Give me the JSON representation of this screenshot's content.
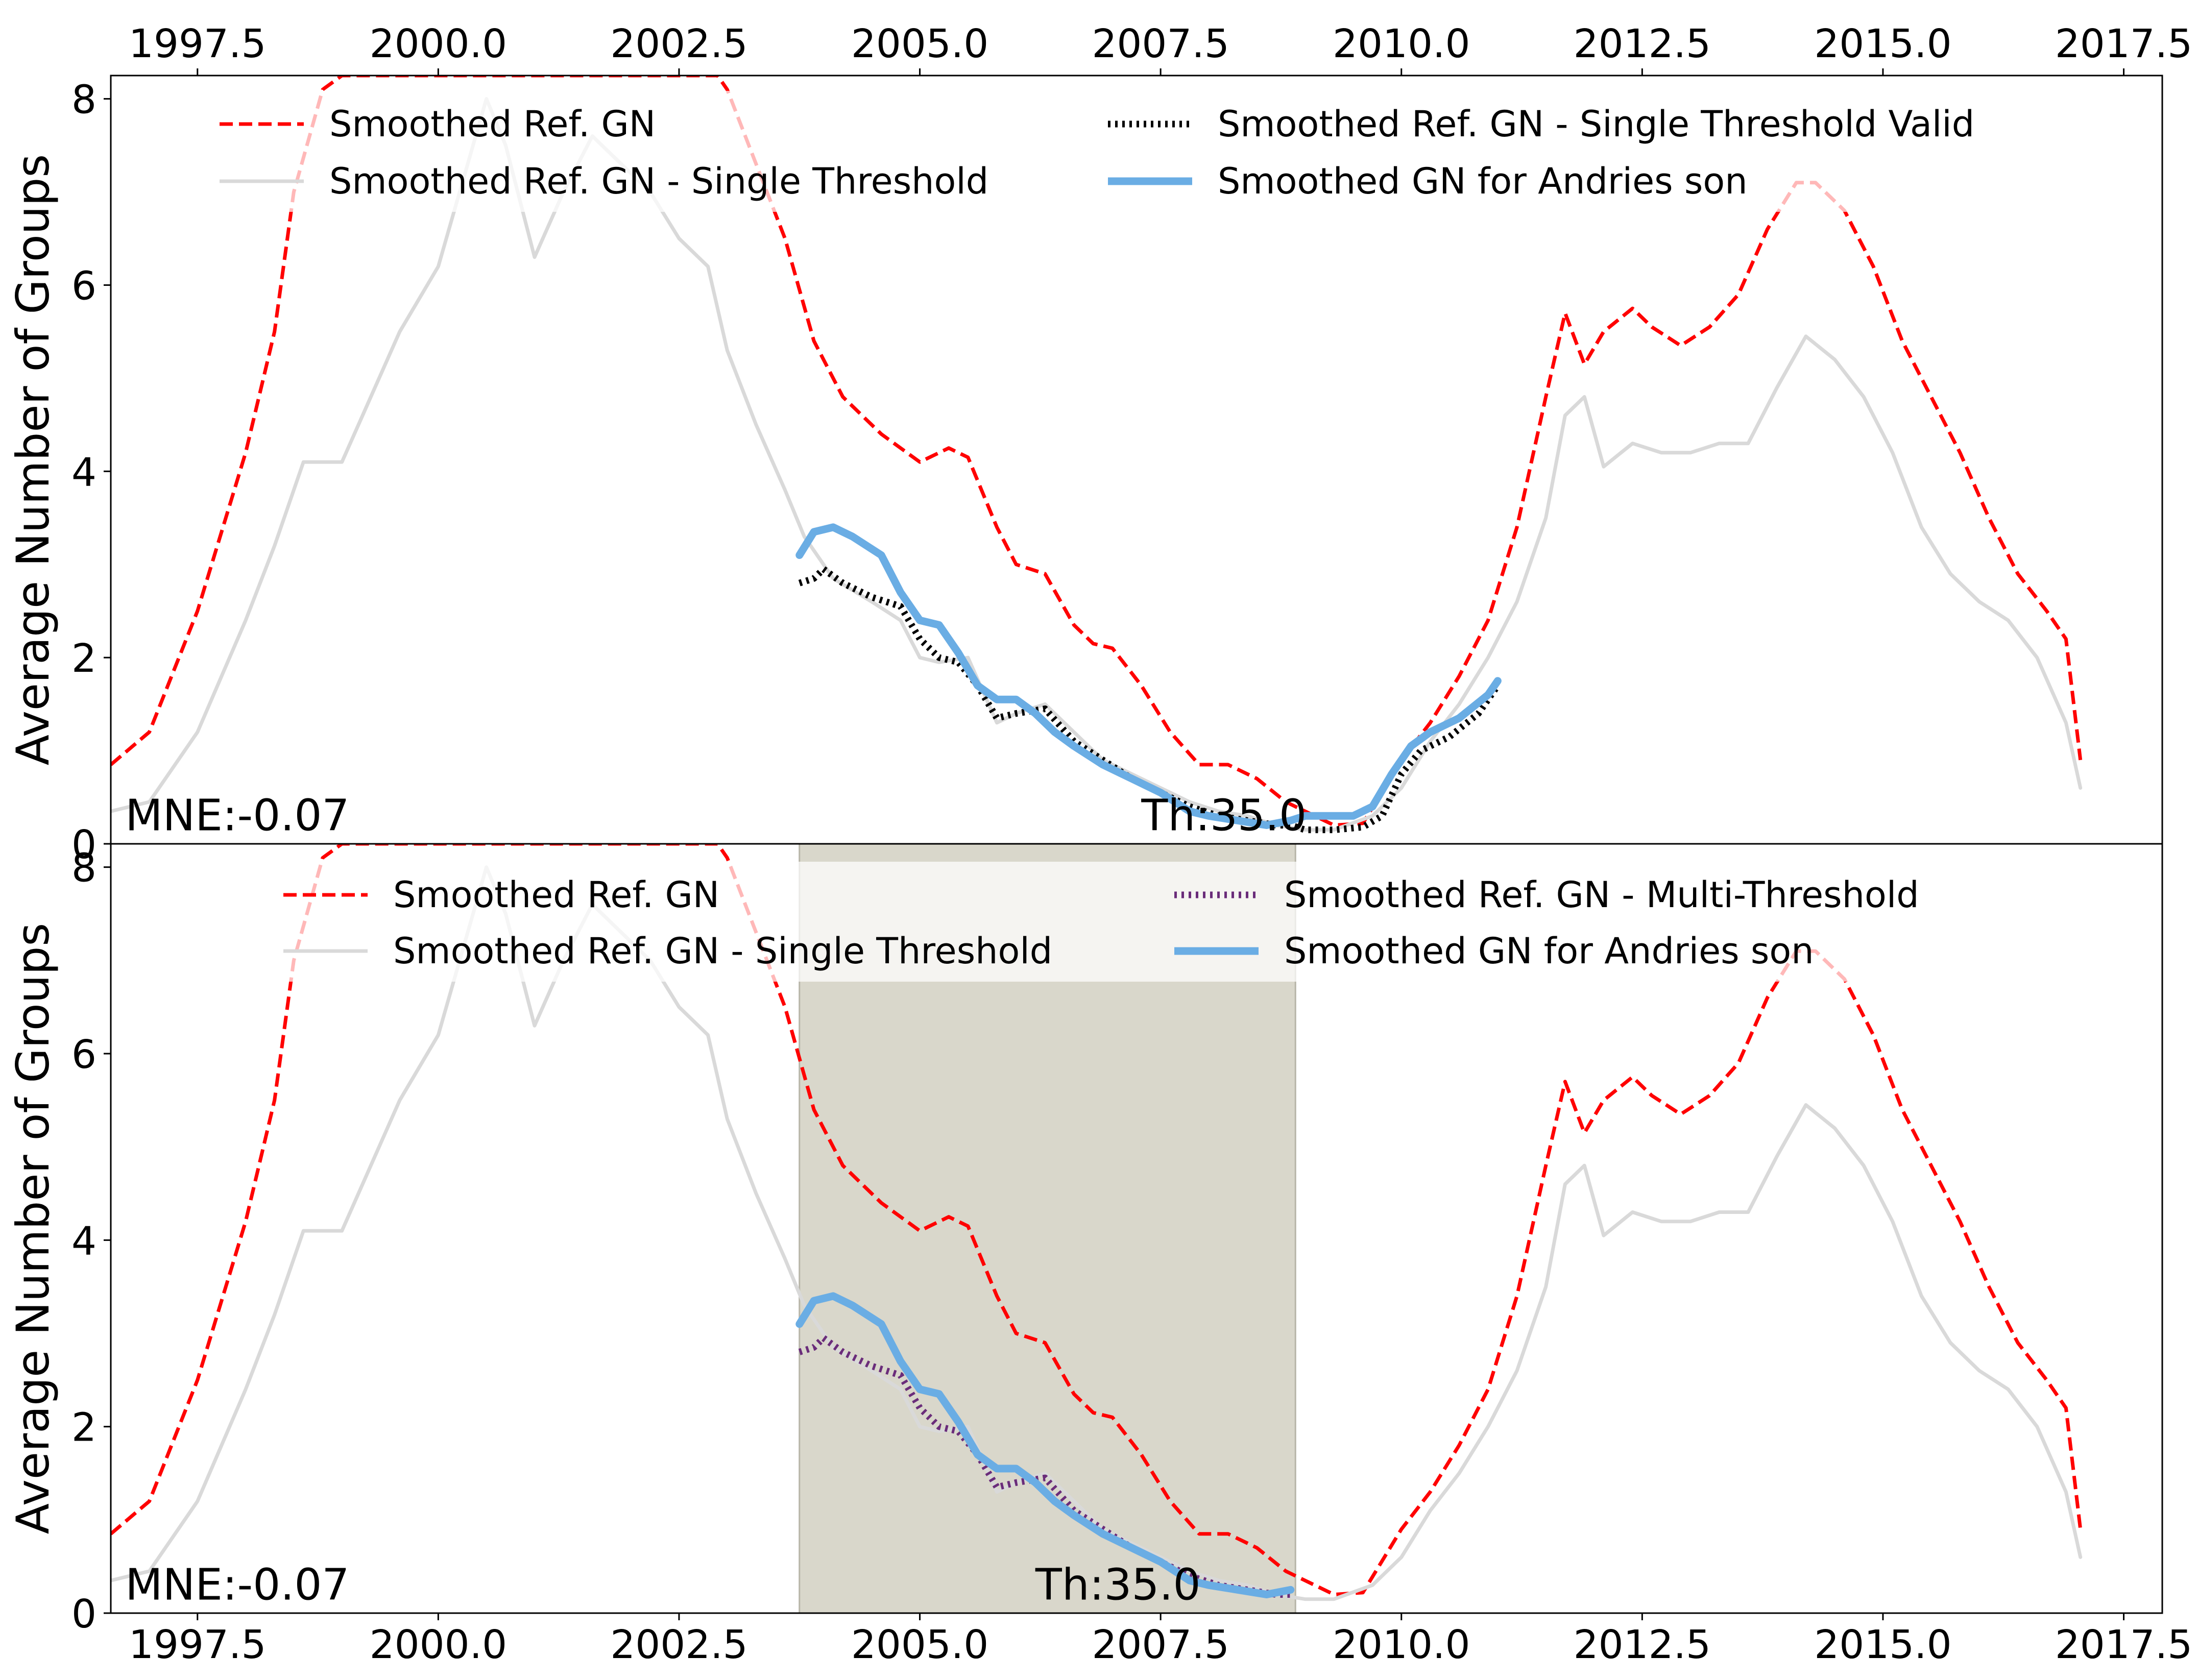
{
  "chart_data": [
    {
      "type": "line",
      "panel": "top",
      "title": "",
      "xlabel": "",
      "ylabel": "Average Number of Groups",
      "xlim": [
        1996.6,
        2017.9
      ],
      "ylim": [
        0,
        8.25
      ],
      "xticks": [
        1997.5,
        2000.0,
        2002.5,
        2005.0,
        2007.5,
        2010.0,
        2012.5,
        2015.0,
        2017.5
      ],
      "xtick_labels": [
        "1997.5",
        "2000.0",
        "2002.5",
        "2005.0",
        "2007.5",
        "2010.0",
        "2012.5",
        "2015.0",
        "2017.5"
      ],
      "yticks": [
        0,
        2,
        4,
        6,
        8
      ],
      "ytick_labels": [
        "0",
        "2",
        "4",
        "6",
        "8"
      ],
      "x_axis_position": "top",
      "grid": false,
      "legend_position": "top",
      "legend": [
        {
          "label": "Smoothed Ref. GN",
          "color": "#ff0000",
          "style": "dashed"
        },
        {
          "label": "Smoothed Ref. GN - Single Threshold",
          "color": "#d9d9d9",
          "style": "solid"
        },
        {
          "label": "Smoothed Ref. GN - Single Threshold Valid",
          "color": "#000000",
          "style": "dotted"
        },
        {
          "label": "Smoothed GN for Andries son",
          "color": "#6aade4",
          "style": "solid"
        }
      ],
      "annotations": [
        {
          "text": "MNE:-0.07",
          "x": 1996.75,
          "y": 0.2
        },
        {
          "text": "Th:35.0",
          "x": 2007.3,
          "y": 0.2
        }
      ],
      "highlight_interval": null,
      "series": [
        {
          "name": "Smoothed Ref. GN",
          "color": "#ff0000",
          "style": "dashed",
          "x": [
            1996.6,
            1997.0,
            1997.5,
            1998.0,
            1998.3,
            1998.5,
            1998.8,
            1999.0,
            1999.3,
            2002.9,
            2003.0,
            2003.3,
            2003.6,
            2003.9,
            2004.2,
            2004.6,
            2005.0,
            2005.3,
            2005.5,
            2005.8,
            2006.0,
            2006.3,
            2006.6,
            2006.8,
            2007.0,
            2007.3,
            2007.6,
            2007.9,
            2008.2,
            2008.5,
            2008.8,
            2009.1,
            2009.3,
            2009.6,
            2010.0,
            2010.3,
            2010.6,
            2010.9,
            2011.2,
            2011.5,
            2011.7,
            2011.9,
            2012.1,
            2012.4,
            2012.6,
            2012.9,
            2013.2,
            2013.5,
            2013.8,
            2014.1,
            2014.3,
            2014.6,
            2014.9,
            2015.2,
            2015.5,
            2015.8,
            2016.1,
            2016.4,
            2016.7,
            2016.9,
            2017.05
          ],
          "y": [
            0.85,
            1.2,
            2.5,
            4.2,
            5.5,
            7.0,
            8.1,
            8.25,
            8.25,
            8.25,
            8.1,
            7.3,
            6.5,
            5.4,
            4.8,
            4.4,
            4.1,
            4.25,
            4.15,
            3.4,
            3.0,
            2.9,
            2.35,
            2.15,
            2.1,
            1.7,
            1.2,
            0.85,
            0.85,
            0.7,
            0.45,
            0.3,
            0.2,
            0.22,
            0.9,
            1.3,
            1.8,
            2.4,
            3.4,
            4.8,
            5.7,
            5.15,
            5.5,
            5.75,
            5.55,
            5.35,
            5.55,
            5.9,
            6.6,
            7.1,
            7.1,
            6.8,
            6.2,
            5.4,
            4.8,
            4.2,
            3.5,
            2.9,
            2.5,
            2.2,
            0.9
          ]
        },
        {
          "name": "Smoothed Ref. GN - Single Threshold",
          "color": "#d9d9d9",
          "style": "solid",
          "x": [
            1996.6,
            1997.0,
            1997.5,
            1998.0,
            1998.3,
            1998.6,
            1999.0,
            1999.3,
            1999.6,
            2000.0,
            2000.5,
            2000.7,
            2001.0,
            2001.3,
            2001.6,
            2001.9,
            2002.2,
            2002.5,
            2002.8,
            2003.0,
            2003.3,
            2003.6,
            2003.8,
            2004.1,
            2004.5,
            2004.8,
            2005.0,
            2005.2,
            2005.5,
            2005.8,
            2006.0,
            2006.3,
            2006.6,
            2006.9,
            2007.2,
            2007.5,
            2007.8,
            2008.1,
            2008.4,
            2008.7,
            2009.0,
            2009.3,
            2009.7,
            2010.0,
            2010.3,
            2010.6,
            2010.9,
            2011.2,
            2011.5,
            2011.7,
            2011.9,
            2012.1,
            2012.4,
            2012.7,
            2013.0,
            2013.3,
            2013.6,
            2013.9,
            2014.2,
            2014.5,
            2014.8,
            2015.1,
            2015.4,
            2015.7,
            2016.0,
            2016.3,
            2016.6,
            2016.9,
            2017.05
          ],
          "y": [
            0.35,
            0.45,
            1.2,
            2.4,
            3.2,
            4.1,
            4.1,
            4.8,
            5.5,
            6.2,
            8.0,
            7.5,
            6.3,
            7.0,
            7.6,
            7.3,
            7.0,
            6.5,
            6.2,
            5.3,
            4.5,
            3.8,
            3.3,
            2.85,
            2.6,
            2.4,
            2.0,
            1.95,
            2.0,
            1.3,
            1.4,
            1.5,
            1.2,
            0.9,
            0.75,
            0.6,
            0.45,
            0.35,
            0.3,
            0.2,
            0.15,
            0.15,
            0.3,
            0.6,
            1.1,
            1.5,
            2.0,
            2.6,
            3.5,
            4.6,
            4.8,
            4.05,
            4.3,
            4.2,
            4.2,
            4.3,
            4.3,
            4.9,
            5.45,
            5.2,
            4.8,
            4.2,
            3.4,
            2.9,
            2.6,
            2.4,
            2.0,
            1.3,
            0.6
          ]
        },
        {
          "name": "Smoothed Ref. GN - Single Threshold Valid",
          "color": "#000000",
          "style": "dotted",
          "x": [
            2003.75,
            2003.9,
            2004.0,
            2004.2,
            2004.5,
            2004.8,
            2005.0,
            2005.2,
            2005.4,
            2005.6,
            2005.8,
            2006.0,
            2006.3,
            2006.6,
            2006.9,
            2007.2,
            2007.5,
            2007.8,
            2008.1,
            2008.4,
            2008.7,
            2008.85,
            2009.0,
            2009.3,
            2009.6,
            2009.8,
            2010.0,
            2010.2,
            2010.5,
            2010.8,
            2011.0
          ],
          "y": [
            2.8,
            2.85,
            2.95,
            2.8,
            2.65,
            2.55,
            2.2,
            2.0,
            1.95,
            1.7,
            1.35,
            1.4,
            1.45,
            1.1,
            0.9,
            0.7,
            0.55,
            0.4,
            0.3,
            0.25,
            0.2,
            0.2,
            0.15,
            0.15,
            0.18,
            0.3,
            0.75,
            1.0,
            1.15,
            1.4,
            1.7
          ]
        },
        {
          "name": "Smoothed GN for Andries son",
          "color": "#6aade4",
          "style": "solid",
          "x": [
            2003.75,
            2003.9,
            2004.1,
            2004.3,
            2004.6,
            2004.8,
            2005.0,
            2005.2,
            2005.4,
            2005.6,
            2005.8,
            2006.0,
            2006.2,
            2006.4,
            2006.6,
            2006.9,
            2007.2,
            2007.5,
            2007.8,
            2008.0,
            2008.3,
            2008.6,
            2008.85,
            2009.0,
            2009.2,
            2009.5,
            2009.7,
            2009.9,
            2010.1,
            2010.3,
            2010.6,
            2010.9,
            2011.0
          ],
          "y": [
            3.1,
            3.35,
            3.4,
            3.3,
            3.1,
            2.7,
            2.4,
            2.35,
            2.05,
            1.7,
            1.55,
            1.55,
            1.4,
            1.2,
            1.05,
            0.85,
            0.7,
            0.55,
            0.35,
            0.3,
            0.25,
            0.2,
            0.25,
            0.3,
            0.3,
            0.3,
            0.4,
            0.75,
            1.05,
            1.2,
            1.35,
            1.6,
            1.75
          ]
        }
      ]
    },
    {
      "type": "line",
      "panel": "bottom",
      "title": "",
      "xlabel": "",
      "ylabel": "Average Number of Groups",
      "xlim": [
        1996.6,
        2017.9
      ],
      "ylim": [
        0,
        8.25
      ],
      "xticks": [
        1997.5,
        2000.0,
        2002.5,
        2005.0,
        2007.5,
        2010.0,
        2012.5,
        2015.0,
        2017.5
      ],
      "xtick_labels": [
        "1997.5",
        "2000.0",
        "2002.5",
        "2005.0",
        "2007.5",
        "2010.0",
        "2012.5",
        "2015.0",
        "2017.5"
      ],
      "yticks": [
        0,
        2,
        4,
        6,
        8
      ],
      "ytick_labels": [
        "0",
        "2",
        "4",
        "6",
        "8"
      ],
      "x_axis_position": "bottom",
      "grid": false,
      "legend_position": "top",
      "legend": [
        {
          "label": "Smoothed Ref. GN",
          "color": "#ff0000",
          "style": "dashed"
        },
        {
          "label": "Smoothed Ref. GN - Single Threshold",
          "color": "#d9d9d9",
          "style": "solid"
        },
        {
          "label": "Smoothed Ref. GN - Multi-Threshold",
          "color": "#6a2c7a",
          "style": "dotted"
        },
        {
          "label": "Smoothed GN for Andries son",
          "color": "#6aade4",
          "style": "solid"
        }
      ],
      "annotations": [
        {
          "text": "MNE:-0.07",
          "x": 1996.75,
          "y": 0.2
        },
        {
          "text": "Th:35.0",
          "x": 2006.2,
          "y": 0.2
        }
      ],
      "highlight_interval": {
        "x": [
          2003.75,
          2008.9
        ],
        "color": "#d9d7cb"
      },
      "series": [
        {
          "name": "Smoothed Ref. GN",
          "color": "#ff0000",
          "style": "dashed",
          "x": [
            1996.6,
            1997.0,
            1997.5,
            1998.0,
            1998.3,
            1998.5,
            1998.8,
            1999.0,
            1999.3,
            2002.9,
            2003.0,
            2003.3,
            2003.6,
            2003.9,
            2004.2,
            2004.6,
            2005.0,
            2005.3,
            2005.5,
            2005.8,
            2006.0,
            2006.3,
            2006.6,
            2006.8,
            2007.0,
            2007.3,
            2007.6,
            2007.9,
            2008.2,
            2008.5,
            2008.8,
            2009.1,
            2009.3,
            2009.6,
            2010.0,
            2010.3,
            2010.6,
            2010.9,
            2011.2,
            2011.5,
            2011.7,
            2011.9,
            2012.1,
            2012.4,
            2012.6,
            2012.9,
            2013.2,
            2013.5,
            2013.8,
            2014.1,
            2014.3,
            2014.6,
            2014.9,
            2015.2,
            2015.5,
            2015.8,
            2016.1,
            2016.4,
            2016.7,
            2016.9,
            2017.05
          ],
          "y": [
            0.85,
            1.2,
            2.5,
            4.2,
            5.5,
            7.0,
            8.1,
            8.25,
            8.25,
            8.25,
            8.1,
            7.3,
            6.5,
            5.4,
            4.8,
            4.4,
            4.1,
            4.25,
            4.15,
            3.4,
            3.0,
            2.9,
            2.35,
            2.15,
            2.1,
            1.7,
            1.2,
            0.85,
            0.85,
            0.7,
            0.45,
            0.3,
            0.2,
            0.22,
            0.9,
            1.3,
            1.8,
            2.4,
            3.4,
            4.8,
            5.7,
            5.15,
            5.5,
            5.75,
            5.55,
            5.35,
            5.55,
            5.9,
            6.6,
            7.1,
            7.1,
            6.8,
            6.2,
            5.4,
            4.8,
            4.2,
            3.5,
            2.9,
            2.5,
            2.2,
            0.9
          ]
        },
        {
          "name": "Smoothed Ref. GN - Single Threshold",
          "color": "#d9d9d9",
          "style": "solid",
          "x": [
            1996.6,
            1997.0,
            1997.5,
            1998.0,
            1998.3,
            1998.6,
            1999.0,
            1999.3,
            1999.6,
            2000.0,
            2000.5,
            2000.7,
            2001.0,
            2001.3,
            2001.6,
            2001.9,
            2002.2,
            2002.5,
            2002.8,
            2003.0,
            2003.3,
            2003.6,
            2003.8,
            2004.1,
            2004.5,
            2004.8,
            2005.0,
            2005.2,
            2005.5,
            2005.8,
            2006.0,
            2006.3,
            2006.6,
            2006.9,
            2007.2,
            2007.5,
            2007.8,
            2008.1,
            2008.4,
            2008.7,
            2009.0,
            2009.3,
            2009.7,
            2010.0,
            2010.3,
            2010.6,
            2010.9,
            2011.2,
            2011.5,
            2011.7,
            2011.9,
            2012.1,
            2012.4,
            2012.7,
            2013.0,
            2013.3,
            2013.6,
            2013.9,
            2014.2,
            2014.5,
            2014.8,
            2015.1,
            2015.4,
            2015.7,
            2016.0,
            2016.3,
            2016.6,
            2016.9,
            2017.05
          ],
          "y": [
            0.35,
            0.45,
            1.2,
            2.4,
            3.2,
            4.1,
            4.1,
            4.8,
            5.5,
            6.2,
            8.0,
            7.5,
            6.3,
            7.0,
            7.6,
            7.3,
            7.0,
            6.5,
            6.2,
            5.3,
            4.5,
            3.8,
            3.3,
            2.85,
            2.6,
            2.4,
            2.0,
            1.95,
            2.0,
            1.3,
            1.4,
            1.5,
            1.2,
            0.9,
            0.75,
            0.6,
            0.45,
            0.35,
            0.3,
            0.2,
            0.15,
            0.15,
            0.3,
            0.6,
            1.1,
            1.5,
            2.0,
            2.6,
            3.5,
            4.6,
            4.8,
            4.05,
            4.3,
            4.2,
            4.2,
            4.3,
            4.3,
            4.9,
            5.45,
            5.2,
            4.8,
            4.2,
            3.4,
            2.9,
            2.6,
            2.4,
            2.0,
            1.3,
            0.6
          ]
        },
        {
          "name": "Smoothed Ref. GN - Multi-Threshold",
          "color": "#6a2c7a",
          "style": "dotted",
          "x": [
            2003.75,
            2003.9,
            2004.0,
            2004.2,
            2004.5,
            2004.8,
            2005.0,
            2005.2,
            2005.4,
            2005.6,
            2005.8,
            2006.0,
            2006.3,
            2006.6,
            2006.9,
            2007.2,
            2007.5,
            2007.8,
            2008.1,
            2008.4,
            2008.7,
            2008.85
          ],
          "y": [
            2.8,
            2.85,
            2.95,
            2.8,
            2.65,
            2.55,
            2.2,
            2.0,
            1.95,
            1.7,
            1.35,
            1.4,
            1.45,
            1.1,
            0.9,
            0.7,
            0.55,
            0.4,
            0.3,
            0.25,
            0.2,
            0.2
          ]
        },
        {
          "name": "Smoothed GN for Andries son",
          "color": "#6aade4",
          "style": "solid",
          "x": [
            2003.75,
            2003.9,
            2004.1,
            2004.3,
            2004.6,
            2004.8,
            2005.0,
            2005.2,
            2005.4,
            2005.6,
            2005.8,
            2006.0,
            2006.2,
            2006.4,
            2006.6,
            2006.9,
            2007.2,
            2007.5,
            2007.8,
            2008.0,
            2008.3,
            2008.6,
            2008.85
          ],
          "y": [
            3.1,
            3.35,
            3.4,
            3.3,
            3.1,
            2.7,
            2.4,
            2.35,
            2.05,
            1.7,
            1.55,
            1.55,
            1.4,
            1.2,
            1.05,
            0.85,
            0.7,
            0.55,
            0.35,
            0.3,
            0.25,
            0.2,
            0.25
          ]
        }
      ]
    }
  ]
}
